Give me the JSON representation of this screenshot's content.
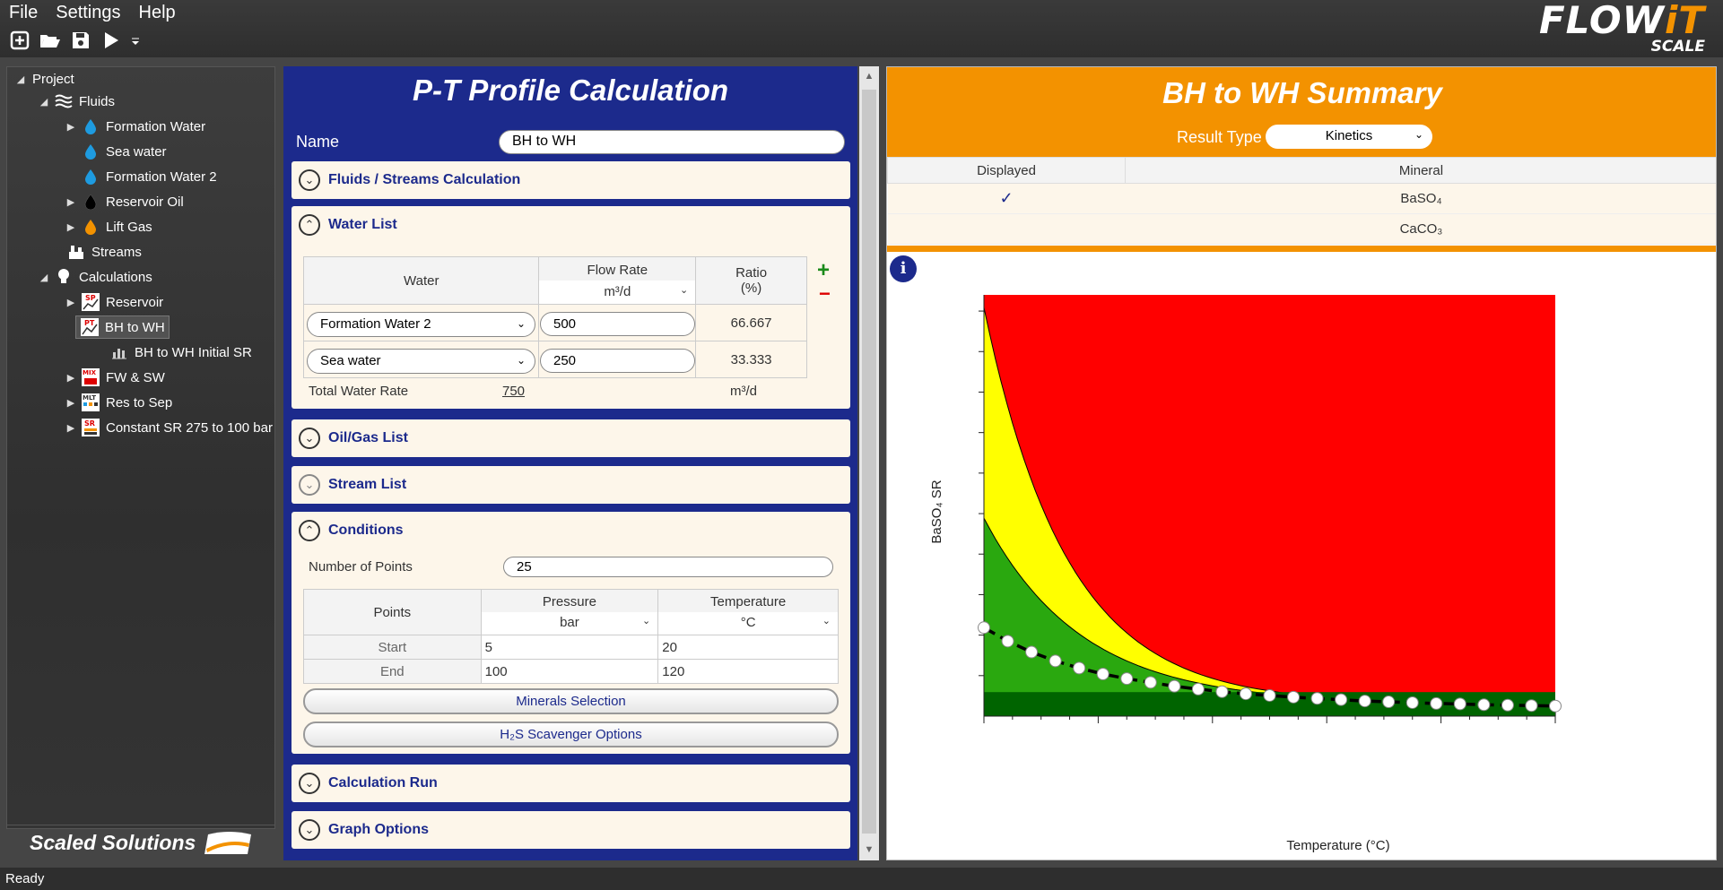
{
  "menu": [
    "File",
    "Settings",
    "Help"
  ],
  "toolbar": {
    "icons": [
      "new-icon",
      "open-folder-icon",
      "save-icon",
      "run-icon",
      "overflow-icon"
    ]
  },
  "logo": {
    "line1a": "FLOW",
    "line1b": "iT",
    "line2": "SCALE"
  },
  "tree": {
    "project": "Project",
    "fluids": "Fluids",
    "formation_water": "Formation Water",
    "sea_water": "Sea water",
    "formation_water_2": "Formation Water 2",
    "reservoir_oil": "Reservoir Oil",
    "lift_gas": "Lift Gas",
    "streams": "Streams",
    "calculations": "Calculations",
    "reservoir": "Reservoir",
    "bh_to_wh": "BH to WH",
    "bh_to_wh_initial_sr": "BH to WH Initial SR",
    "fw_sw": "FW & SW",
    "res_to_sep": "Res to Sep",
    "constant_sr": "Constant SR 275 to 100 bar",
    "badges": {
      "sp": "SP",
      "pt": "PT",
      "mix": "MIX",
      "mlt": "MLT",
      "sr": "SR"
    }
  },
  "brand": "Scaled Solutions",
  "mid": {
    "title": "P-T Profile Calculation",
    "name_label": "Name",
    "name_value": "BH to WH",
    "sections": {
      "fluids_streams": "Fluids / Streams Calculation",
      "water_list": "Water List",
      "oil_gas": "Oil/Gas List",
      "stream_list": "Stream List",
      "conditions": "Conditions",
      "calc_run": "Calculation Run",
      "graph_options": "Graph Options"
    },
    "water_table": {
      "col_water": "Water",
      "col_flow": "Flow Rate",
      "flow_unit": "m³/d",
      "col_ratio": "Ratio",
      "ratio_unit": "(%)",
      "rows": [
        {
          "water": "Formation Water 2",
          "flow": "500",
          "ratio": "66.667"
        },
        {
          "water": "Sea water",
          "flow": "250",
          "ratio": "33.333"
        }
      ],
      "add": "+",
      "remove": "−",
      "total_label": "Total Water Rate",
      "total_value": "750",
      "total_unit": "m³/d"
    },
    "conditions": {
      "points_label": "Number of Points",
      "points_value": "25",
      "col_points": "Points",
      "col_pressure": "Pressure",
      "pressure_unit": "bar",
      "col_temp": "Temperature",
      "temp_unit": "°C",
      "rows": [
        {
          "label": "Start",
          "pressure": "5",
          "temp": "20"
        },
        {
          "label": "End",
          "pressure": "100",
          "temp": "120"
        }
      ],
      "minerals_btn": "Minerals Selection",
      "h2s_btn": "H₂S Scavenger Options"
    }
  },
  "right": {
    "title": "BH to WH Summary",
    "result_type_label": "Result Type",
    "result_type_value": "Kinetics",
    "col_displayed": "Displayed",
    "col_mineral": "Mineral",
    "minerals": [
      {
        "displayed": "✓",
        "mineral": "BaSO₄"
      },
      {
        "displayed": "",
        "mineral": "CaCO₃"
      }
    ],
    "info": "i"
  },
  "chart_data": {
    "type": "area",
    "xlabel": "Temperature (°C)",
    "ylabel": "BaSO₄ SR",
    "xlim": [
      20,
      120
    ],
    "ylim": [
      0,
      1
    ],
    "x": [
      20,
      24.17,
      28.33,
      32.5,
      36.67,
      40.83,
      45,
      49.17,
      53.33,
      57.5,
      61.67,
      65.83,
      70,
      74.17,
      78.33,
      82.5,
      86.67,
      90.83,
      95,
      99.17,
      103.33,
      107.5,
      111.67,
      115.83,
      120
    ],
    "series": [
      {
        "values": [
          0.21,
          0.178,
          0.152,
          0.131,
          0.114,
          0.1,
          0.089,
          0.08,
          0.071,
          0.064,
          0.058,
          0.053,
          0.049,
          0.045,
          0.042,
          0.039,
          0.036,
          0.034,
          0.032,
          0.03,
          0.029,
          0.027,
          0.026,
          0.025,
          0.024
        ]
      }
    ],
    "bands": [
      {
        "color": "#006400"
      },
      {
        "color": "#2aa80f"
      },
      {
        "color": "#ffff00"
      },
      {
        "color": "#ff0000"
      }
    ],
    "grid": false
  },
  "status": "Ready"
}
